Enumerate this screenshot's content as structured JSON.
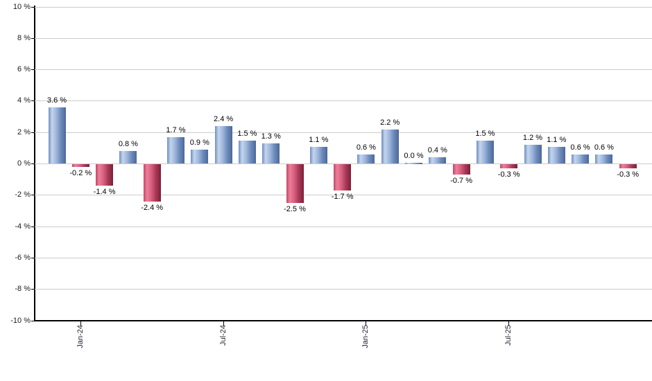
{
  "chart_data": {
    "type": "bar",
    "title": "",
    "xlabel": "",
    "ylabel": "",
    "ylim": [
      -10,
      10
    ],
    "y_step": 2,
    "grid": true,
    "y_tick_labels": [
      "10 %",
      "8 %",
      "6 %",
      "4 %",
      "2 %",
      "0 %",
      "-2 %",
      "-4 %",
      "-6 %",
      "-8 %",
      "-10 %"
    ],
    "values": [
      3.6,
      -0.2,
      -1.4,
      0.8,
      -2.4,
      1.7,
      0.9,
      2.4,
      1.5,
      1.3,
      -2.5,
      1.1,
      -1.7,
      0.6,
      2.2,
      0.0,
      0.4,
      -0.7,
      1.5,
      -0.3,
      1.2,
      1.1,
      0.6,
      0.6,
      -0.3
    ],
    "bar_labels": [
      "3.6 %",
      "-0.2 %",
      "-1.4 %",
      "0.8 %",
      "-2.4 %",
      "1.7 %",
      "0.9 %",
      "2.4 %",
      "1.5 %",
      "1.3 %",
      "-2.5 %",
      "1.1 %",
      "-1.7 %",
      "0.6 %",
      "2.2 %",
      "0.0 %",
      "0.4 %",
      "-0.7 %",
      "1.5 %",
      "-0.3 %",
      "1.2 %",
      "1.1 %",
      "0.6 %",
      "0.6 %",
      "-0.3 %"
    ],
    "x_ticks": [
      {
        "index": 1,
        "label": "Jan-24"
      },
      {
        "index": 7,
        "label": "Jul-24"
      },
      {
        "index": 13,
        "label": "Jan-25"
      },
      {
        "index": 19,
        "label": "Jul-25"
      }
    ],
    "legend": [],
    "colors": {
      "positive_stops": [
        "#6f8ec0",
        "#c4d5ee",
        "#9fb6da",
        "#6e8cbc",
        "#4b6899"
      ],
      "negative_stops": [
        "#c04868",
        "#ee7e9a",
        "#d65f7e",
        "#aa3a58",
        "#7c1e3a"
      ],
      "gridline": "#cccccc",
      "axis": "#000000",
      "label_text": "#000000"
    }
  }
}
